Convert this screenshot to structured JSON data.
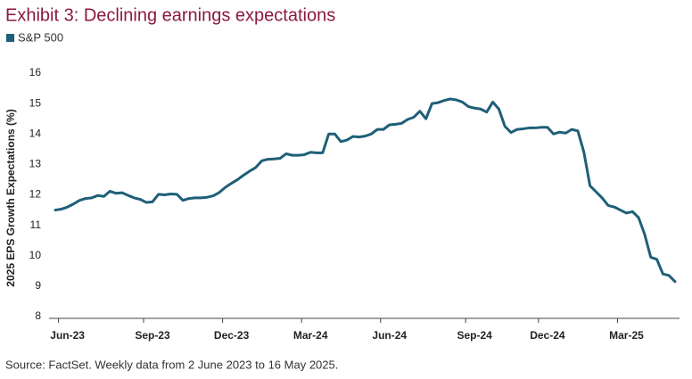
{
  "chart_data": {
    "type": "line",
    "title": "Exhibit 3: Declining earnings expectations",
    "y_label": "2025 EPS Growth Expectations (%)",
    "source": "Source: FactSet. Weekly data from 2 June 2023 to 16 May 2025.",
    "categories": [
      null,
      null,
      "Jun-23",
      null,
      null,
      null,
      null,
      null,
      null,
      null,
      null,
      null,
      null,
      null,
      null,
      null,
      "Sep-23",
      null,
      null,
      null,
      null,
      null,
      null,
      null,
      null,
      null,
      null,
      null,
      null,
      "Dec-23",
      null,
      null,
      null,
      null,
      null,
      null,
      null,
      null,
      null,
      null,
      null,
      null,
      "Mar-24",
      null,
      null,
      null,
      null,
      null,
      null,
      null,
      null,
      null,
      null,
      null,
      null,
      "Jun-24",
      null,
      null,
      null,
      null,
      null,
      null,
      null,
      null,
      null,
      null,
      null,
      null,
      null,
      "Sep-24",
      null,
      null,
      null,
      null,
      null,
      null,
      null,
      null,
      null,
      null,
      null,
      "Dec-24",
      null,
      null,
      null,
      null,
      null,
      null,
      null,
      null,
      null,
      null,
      null,
      null,
      "Mar-25",
      null,
      null,
      null,
      null,
      null,
      null,
      null,
      null
    ],
    "series": [
      {
        "name": "S&P 500",
        "color": "#1f5f78",
        "values": [
          11.5,
          11.53,
          11.6,
          11.7,
          11.82,
          11.88,
          11.9,
          11.98,
          11.95,
          12.12,
          12.05,
          12.07,
          11.98,
          11.9,
          11.85,
          11.75,
          11.77,
          12.02,
          12.0,
          12.03,
          12.02,
          11.82,
          11.88,
          11.9,
          11.9,
          11.92,
          11.97,
          12.08,
          12.25,
          12.38,
          12.5,
          12.65,
          12.78,
          12.9,
          13.12,
          13.17,
          13.18,
          13.2,
          13.35,
          13.3,
          13.3,
          13.32,
          13.4,
          13.38,
          13.38,
          14.0,
          14.0,
          13.75,
          13.8,
          13.92,
          13.9,
          13.93,
          14.0,
          14.15,
          14.15,
          14.3,
          14.32,
          14.35,
          14.48,
          14.55,
          14.75,
          14.5,
          15.0,
          15.03,
          15.1,
          15.15,
          15.12,
          15.05,
          14.9,
          14.85,
          14.82,
          14.72,
          15.05,
          14.82,
          14.25,
          14.05,
          14.15,
          14.17,
          14.2,
          14.2,
          14.22,
          14.22,
          14.0,
          14.06,
          14.03,
          14.15,
          14.1,
          13.4,
          12.3,
          12.1,
          11.9,
          11.65,
          11.6,
          11.5,
          11.4,
          11.45,
          11.25,
          10.7,
          9.95,
          9.88,
          9.4,
          9.35,
          9.15
        ]
      }
    ],
    "ylim": [
      8,
      16
    ],
    "yticks": [
      8,
      9,
      10,
      11,
      12,
      13,
      14,
      15,
      16
    ],
    "grid": false
  }
}
